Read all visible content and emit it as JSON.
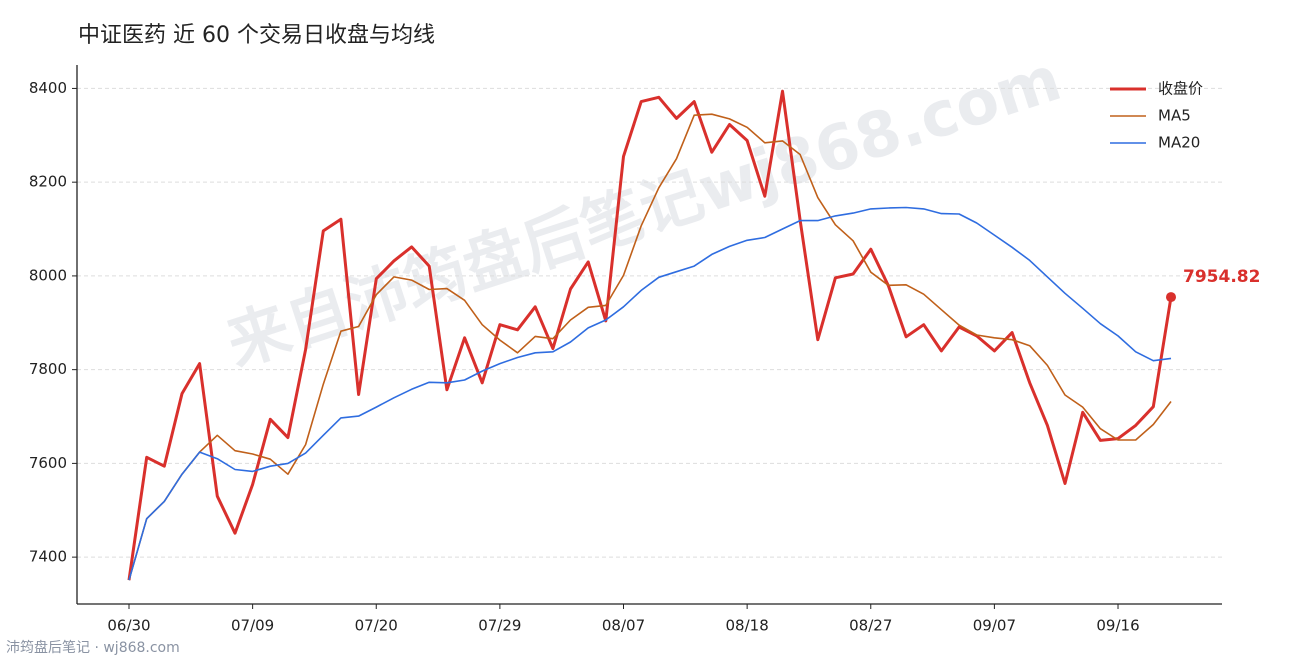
{
  "chart_data": {
    "type": "line",
    "title": "中证医药 近 60 个交易日收盘与均线",
    "watermark": "来自沛筠盘后笔记wj868.com",
    "footer": "沛筠盘后笔记 · wj868.com",
    "categories": [
      "06/30",
      null,
      null,
      null,
      null,
      null,
      null,
      "07/09",
      null,
      null,
      null,
      null,
      null,
      null,
      "07/20",
      null,
      null,
      null,
      null,
      null,
      null,
      "07/29",
      null,
      null,
      null,
      null,
      null,
      null,
      "08/07",
      null,
      null,
      null,
      null,
      null,
      null,
      "08/18",
      null,
      null,
      null,
      null,
      null,
      null,
      "08/27",
      null,
      null,
      null,
      null,
      null,
      null,
      "09/07",
      null,
      null,
      null,
      null,
      null,
      null,
      "09/16",
      null,
      null,
      null
    ],
    "series": [
      {
        "name": "收盘价",
        "color": "#d9302c",
        "values": [
          7351,
          7613,
          7594,
          7749,
          7813,
          7530,
          7451,
          7555,
          7694,
          7655,
          7843,
          8096,
          8121,
          7747,
          7994,
          8032,
          8062,
          8021,
          7757,
          7868,
          7772,
          7896,
          7885,
          7934,
          7845,
          7972,
          8030,
          7904,
          8255,
          8372,
          8381,
          8336,
          8372,
          8264,
          8323,
          8289,
          8170,
          8394,
          8119,
          7864,
          7996,
          8004,
          8057,
          7979,
          7870,
          7896,
          7840,
          7891,
          7872,
          7840,
          7879,
          7772,
          7681,
          7557,
          7709,
          7649,
          7653,
          7681,
          7721,
          7954.82
        ]
      },
      {
        "name": "MA5",
        "color": "#c0601a",
        "values": [
          7351,
          7482,
          7519,
          7577,
          7624,
          7660,
          7627,
          7620,
          7609,
          7577,
          7640,
          7769,
          7882,
          7892,
          7960,
          7998,
          7991,
          7971,
          7973,
          7948,
          7896,
          7863,
          7836,
          7871,
          7866,
          7906,
          7933,
          7937,
          8001,
          8107,
          8188,
          8250,
          8343,
          8345,
          8335,
          8317,
          8284,
          8288,
          8259,
          8167,
          8109,
          8075,
          8008,
          7980,
          7981,
          7961,
          7928,
          7895,
          7874,
          7868,
          7864,
          7851,
          7809,
          7746,
          7720,
          7674,
          7650,
          7650,
          7683,
          7732
        ]
      },
      {
        "name": "MA20",
        "color": "#2f6de0",
        "values": [
          7351,
          7482,
          7519,
          7577,
          7624,
          7610,
          7587,
          7583,
          7594,
          7600,
          7622,
          7660,
          7697,
          7701,
          7720,
          7740,
          7758,
          7773,
          7772,
          7778,
          7797,
          7813,
          7826,
          7836,
          7838,
          7859,
          7889,
          7906,
          7934,
          7969,
          7997,
          8009,
          8021,
          8046,
          8063,
          8076,
          8082,
          8100,
          8118,
          8118,
          8128,
          8134,
          8143,
          8145,
          8146,
          8143,
          8133,
          8132,
          8113,
          8087,
          8061,
          8033,
          7998,
          7963,
          7931,
          7898,
          7872,
          7838,
          7819,
          7824
        ]
      }
    ],
    "ylim": [
      7300,
      8450
    ],
    "yticks": [
      7400,
      7600,
      7800,
      8000,
      8200,
      8400
    ],
    "grid": true,
    "legend": "upper right"
  }
}
